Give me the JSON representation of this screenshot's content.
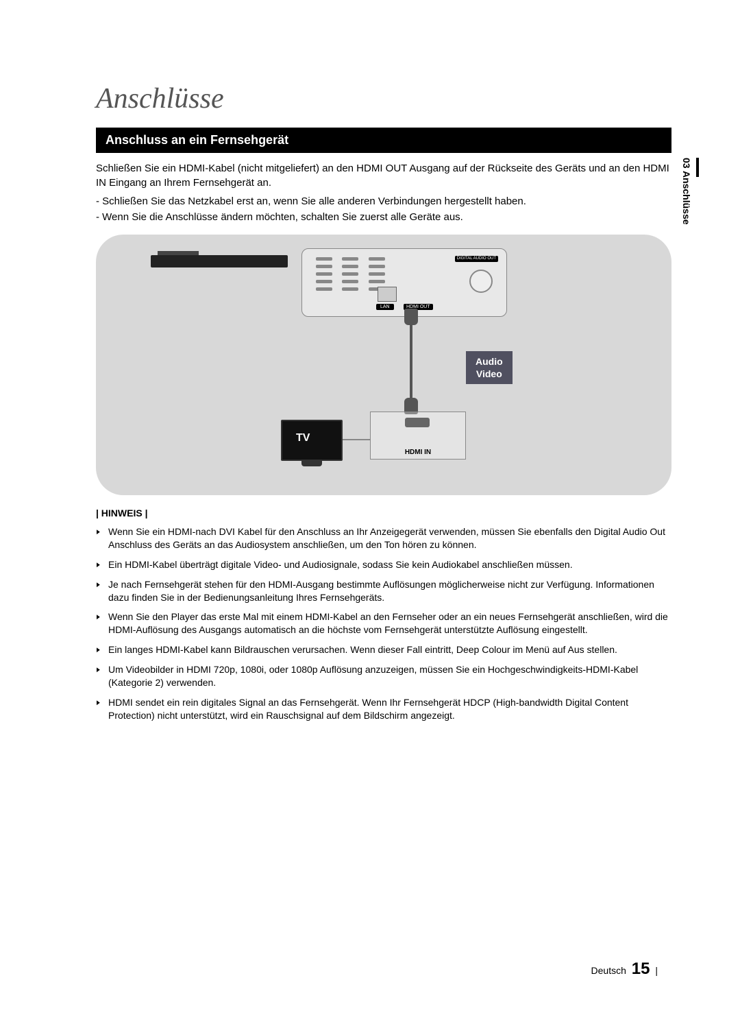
{
  "chapter_title": "Anschlüsse",
  "section_header": "Anschluss an ein Fernsehgerät",
  "intro_paragraph": "Schließen Sie ein HDMI-Kabel (nicht mitgeliefert) an den HDMI OUT Ausgang auf der Rückseite des Geräts und an den HDMI IN Eingang an Ihrem Fernsehgerät an.",
  "dash_items": [
    "- Schließen Sie das Netzkabel erst an, wenn Sie alle anderen Verbindungen hergestellt haben.",
    "- Wenn Sie die Anschlüsse ändern möchten, schalten Sie zuerst alle Geräte aus."
  ],
  "diagram": {
    "lan_label": "LAN",
    "hdmi_out_label": "HDMI OUT",
    "digital_audio_label": "DIGITAL AUDIO OUT",
    "audio_video_label_1": "Audio",
    "audio_video_label_2": "Video",
    "tv_label": "TV",
    "hdmi_in_label": "HDMI IN",
    "bg_color": "#d8d8d8",
    "panel_bg": "#e8e8e8",
    "label_bg": "#505060"
  },
  "hinweis_header": "| HINWEIS |",
  "notes": [
    "Wenn Sie ein HDMI-nach DVI Kabel für den Anschluss an Ihr Anzeigegerät verwenden, müssen Sie ebenfalls den Digital Audio Out Anschluss des Geräts an das Audiosystem anschließen, um den Ton hören zu können.",
    "Ein HDMI-Kabel überträgt digitale Video- und Audiosignale, sodass Sie kein Audiokabel anschließen müssen.",
    "Je nach Fernsehgerät stehen für den HDMI-Ausgang bestimmte Auflösungen möglicherweise nicht zur Verfügung. Informationen dazu finden Sie in der Bedienungsanleitung Ihres Fernsehgeräts.",
    "Wenn Sie den Player das erste Mal mit einem HDMI-Kabel an den Fernseher oder an ein neues Fernsehgerät anschließen, wird die HDMI-Auflösung des Ausgangs automatisch an die höchste vom Fernsehgerät unterstützte Auflösung eingestellt.",
    "Ein langes HDMI-Kabel kann Bildrauschen verursachen. Wenn dieser Fall eintritt, Deep Colour im Menü auf Aus stellen.",
    "Um Videobilder in HDMI 720p, 1080i, oder 1080p Auflösung anzuzeigen, müssen Sie ein Hochgeschwindigkeits-HDMI-Kabel (Kategorie 2) verwenden.",
    "HDMI sendet ein rein digitales Signal an das Fernsehgerät.\nWenn Ihr Fernsehgerät HDCP (High-bandwidth Digital Content Protection) nicht unterstützt, wird ein Rauschsignal auf dem Bildschirm angezeigt."
  ],
  "side_tab": "03  Anschlüsse",
  "footer_lang": "Deutsch",
  "footer_page": "15",
  "footer_bar": "|"
}
